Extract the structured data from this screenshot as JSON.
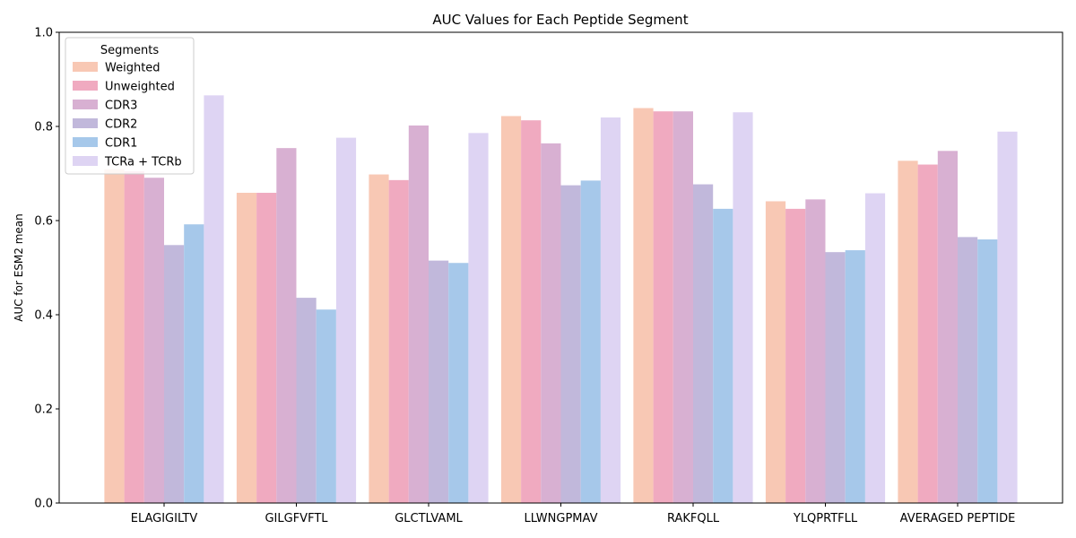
{
  "chart_data": {
    "type": "bar",
    "title": "AUC Values for Each Peptide Segment",
    "xlabel": "",
    "ylabel": "AUC for ESM2 mean",
    "ylim": [
      0,
      1.0
    ],
    "yticks": [
      "0.0",
      "0.2",
      "0.4",
      "0.6",
      "0.8",
      "1.0"
    ],
    "grid": false,
    "legend_title": "Segments",
    "legend_position": "top-left",
    "categories": [
      "ELAGIGILTV",
      "GILGFVFTL",
      "GLCTLVAML",
      "LLWNGPMAV",
      "RAKFQLL",
      "YLQPRTFLL",
      "AVERAGED PEPTIDE"
    ],
    "series": [
      {
        "name": "Weighted",
        "color": "#F8C8B4",
        "values": [
          0.709,
          0.659,
          0.698,
          0.822,
          0.839,
          0.641,
          0.727
        ]
      },
      {
        "name": "Unweighted",
        "color": "#F0AAC0",
        "values": [
          0.705,
          0.659,
          0.686,
          0.813,
          0.832,
          0.625,
          0.719
        ]
      },
      {
        "name": "CDR3",
        "color": "#D8B0D2",
        "values": [
          0.691,
          0.754,
          0.802,
          0.764,
          0.832,
          0.645,
          0.748
        ]
      },
      {
        "name": "CDR2",
        "color": "#C1B8DB",
        "values": [
          0.548,
          0.436,
          0.515,
          0.675,
          0.677,
          0.533,
          0.565
        ]
      },
      {
        "name": "CDR1",
        "color": "#A6C8EA",
        "values": [
          0.592,
          0.411,
          0.51,
          0.685,
          0.625,
          0.537,
          0.56
        ]
      },
      {
        "name": "TCRa + TCRb",
        "color": "#DED4F3",
        "values": [
          0.866,
          0.776,
          0.786,
          0.819,
          0.83,
          0.658,
          0.789
        ]
      }
    ]
  }
}
